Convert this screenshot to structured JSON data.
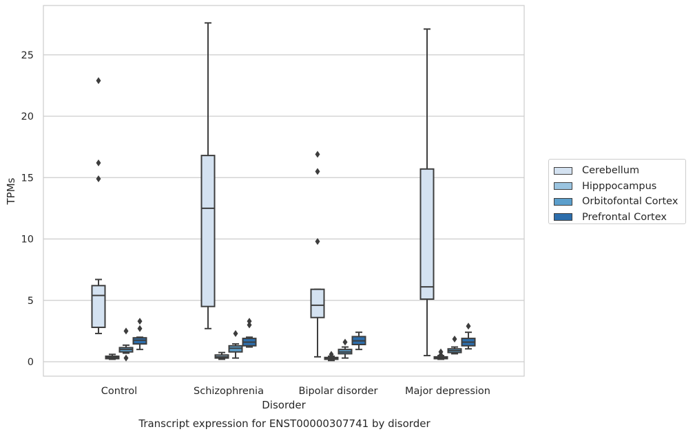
{
  "chart_data": {
    "type": "box",
    "xlabel": "Disorder",
    "ylabel": "TPMs",
    "caption": "Transcript expression for ENST00000307741 by disorder",
    "ylim": [
      -1.2,
      29
    ],
    "yticks": [
      0,
      5,
      10,
      15,
      20,
      25
    ],
    "grid": true,
    "legend_position": "right",
    "categories": [
      "Control",
      "Schizophrenia",
      "Bipolar disorder",
      "Major depression"
    ],
    "series": [
      {
        "name": "Cerebellum",
        "color": "#d4e2f1",
        "boxes": [
          {
            "whislo": 2.3,
            "q1": 2.8,
            "med": 5.4,
            "q3": 6.2,
            "whishi": 6.7,
            "fliers": [
              14.9,
              16.2,
              22.9
            ]
          },
          {
            "whislo": 2.7,
            "q1": 4.5,
            "med": 12.5,
            "q3": 16.8,
            "whishi": 27.6,
            "fliers": []
          },
          {
            "whislo": 0.4,
            "q1": 3.6,
            "med": 4.6,
            "q3": 5.9,
            "whishi": 5.9,
            "fliers": [
              9.8,
              15.5,
              16.9
            ]
          },
          {
            "whislo": 0.5,
            "q1": 5.1,
            "med": 6.1,
            "q3": 15.7,
            "whishi": 27.1,
            "fliers": []
          }
        ]
      },
      {
        "name": "Hipppocampus",
        "color": "#9ac4e0",
        "boxes": [
          {
            "whislo": 0.2,
            "q1": 0.25,
            "med": 0.35,
            "q3": 0.45,
            "whislo_": 0,
            "whishi": 0.6,
            "fliers": []
          },
          {
            "whislo": 0.2,
            "q1": 0.3,
            "med": 0.4,
            "q3": 0.55,
            "whishi": 0.75,
            "fliers": []
          },
          {
            "whislo": 0.1,
            "q1": 0.2,
            "med": 0.28,
            "q3": 0.35,
            "whishi": 0.45,
            "fliers": [
              0.6
            ]
          },
          {
            "whislo": 0.2,
            "q1": 0.25,
            "med": 0.32,
            "q3": 0.4,
            "whishi": 0.5,
            "fliers": [
              0.55,
              0.8
            ]
          }
        ]
      },
      {
        "name": "Orbitofontal Cortex",
        "color": "#5c9fcc",
        "boxes": [
          {
            "whislo": 0.7,
            "q1": 0.8,
            "med": 1.0,
            "q3": 1.15,
            "whishi": 1.35,
            "fliers": [
              0.3,
              2.5
            ]
          },
          {
            "whislo": 0.3,
            "q1": 0.8,
            "med": 1.1,
            "q3": 1.3,
            "whishi": 1.45,
            "fliers": [
              2.3
            ]
          },
          {
            "whislo": 0.3,
            "q1": 0.65,
            "med": 0.8,
            "q3": 1.0,
            "whishi": 1.2,
            "fliers": [
              1.6
            ]
          },
          {
            "whislo": 0.65,
            "q1": 0.75,
            "med": 0.9,
            "q3": 1.05,
            "whishi": 1.2,
            "fliers": [
              1.85
            ]
          }
        ]
      },
      {
        "name": "Prefrontal Cortex",
        "color": "#2d6eac",
        "boxes": [
          {
            "whislo": 1.0,
            "q1": 1.45,
            "med": 1.75,
            "q3": 1.95,
            "whishi": 2.0,
            "fliers": [
              2.7,
              3.3
            ]
          },
          {
            "whislo": 1.2,
            "q1": 1.3,
            "med": 1.6,
            "q3": 1.9,
            "whishi": 2.0,
            "fliers": [
              3.0,
              3.3
            ]
          },
          {
            "whislo": 1.0,
            "q1": 1.4,
            "med": 1.7,
            "q3": 2.05,
            "whishi": 2.4,
            "fliers": []
          },
          {
            "whislo": 1.05,
            "q1": 1.3,
            "med": 1.6,
            "q3": 1.9,
            "whishi": 2.4,
            "fliers": [
              2.9
            ]
          }
        ]
      }
    ]
  }
}
